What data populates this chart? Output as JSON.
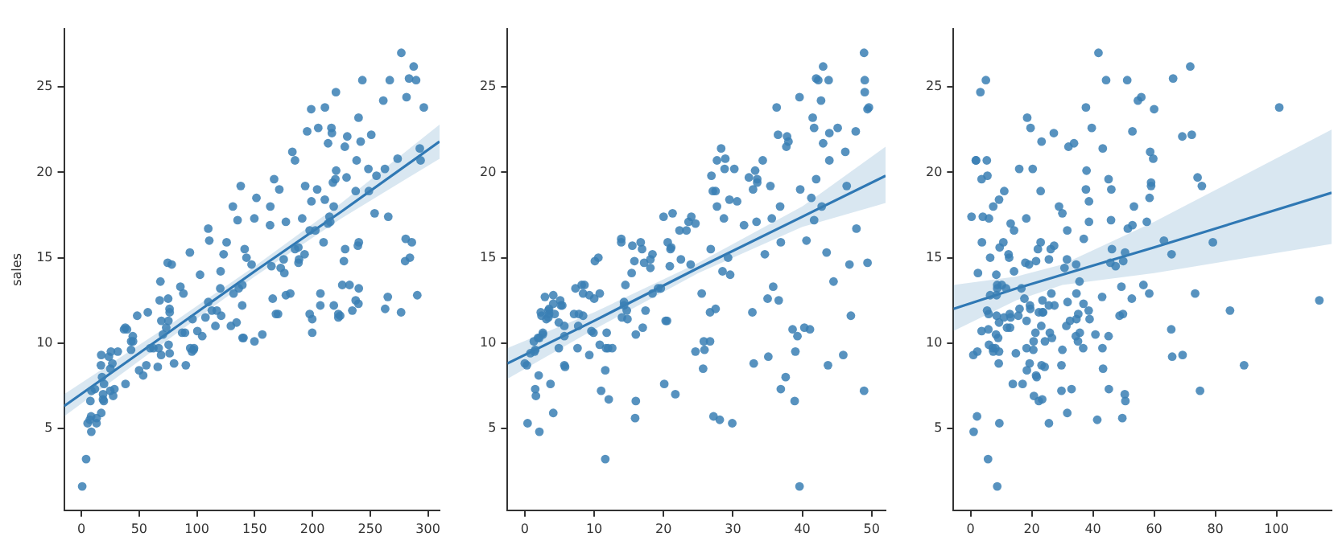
{
  "chart_data": [
    {
      "type": "scatter",
      "ylabel": "sales",
      "xlim": [
        -15,
        310
      ],
      "ylim": [
        0.2,
        28.4
      ],
      "xticks": [
        0,
        50,
        100,
        150,
        200,
        250,
        300
      ],
      "yticks": [
        5,
        10,
        15,
        20,
        25
      ],
      "grid": false,
      "series": [
        {
          "type": "scatter",
          "marker": "circle",
          "color": "#3a7fb4",
          "x": [
            230.1,
            44.5,
            17.2,
            151.5,
            180.8,
            8.7,
            57.5,
            120.2,
            8.6,
            199.8,
            66.1,
            214.7,
            23.8,
            97.5,
            204.1,
            195.4,
            67.8,
            281.4,
            69.2,
            147.3,
            218.4,
            237.4,
            13.2,
            228.3,
            62.3,
            262.9,
            142.9,
            240.1,
            248.8,
            70.6,
            292.9,
            112.9,
            97.2,
            265.6,
            95.7,
            290.7,
            266.9,
            74.7,
            43.1,
            228,
            202.5,
            177,
            293.6,
            206.9,
            25.1,
            175.1,
            89.7,
            239.9,
            227.2,
            66.9,
            199.8,
            100.4,
            216.4,
            182.6,
            262.7,
            198.9,
            7.3,
            136.2,
            210.8,
            210.7,
            53.5,
            261.3,
            239.3,
            102.7,
            131.1,
            69,
            31.5,
            139.3,
            237.4,
            216.8,
            199.1,
            109.8,
            26.8,
            129.4,
            213.4,
            16.9,
            27.5,
            120.5,
            5.4,
            116,
            76.4,
            239.8,
            75.3,
            68.4,
            213.5,
            193.2,
            76.3,
            110.7,
            88.3,
            109.8,
            134.3,
            28.6,
            217.7,
            250.9,
            107.4,
            163.3,
            197.6,
            184.9,
            289.7,
            135.2,
            222.4,
            296.4,
            280.2,
            187.9,
            238.2,
            137.9,
            25,
            90.4,
            13.1,
            255.4,
            225.8,
            241.7,
            175.7,
            209.6,
            78.2,
            75.1,
            139.2,
            76.4,
            125.7,
            19.4,
            141.3,
            18.8,
            224,
            123.1,
            229.5,
            87.2,
            7.8,
            80.2,
            220.3,
            59.6,
            0.7,
            265.2,
            8.4,
            219.8,
            36.9,
            48.3,
            25.6,
            273.7,
            43,
            184.9,
            73.4,
            193.7,
            220.5,
            104.6,
            96.2,
            140.3,
            240.1,
            243.2,
            38,
            44.7,
            280.7,
            121,
            197.6,
            171.3,
            187.8,
            4.1,
            93.9,
            149.8,
            11.7,
            131.7,
            172.5,
            85.7,
            188.4,
            163.5,
            117.2,
            234.5,
            17.9,
            206.8,
            215.4,
            284.3,
            50,
            164.5,
            19.6,
            168.4,
            222.4,
            276.9,
            248.4,
            170.2,
            276.7,
            165.6,
            156.6,
            218.5,
            56.2,
            287.6,
            253.8,
            205,
            139.5,
            191.1,
            286,
            18.7,
            39.5,
            75.5,
            17.2,
            166.8,
            149.7,
            38.2,
            94.2,
            177,
            283.6,
            232.1
          ],
          "values": [
            22.1,
            10.4,
            9.3,
            18.5,
            12.9,
            7.2,
            11.8,
            13.2,
            4.8,
            10.6,
            8.6,
            17.4,
            9.2,
            9.7,
            19,
            22.4,
            12.5,
            24.4,
            11.3,
            14.6,
            18,
            12.5,
            5.6,
            15.5,
            9.7,
            12,
            15,
            15.9,
            18.9,
            10.5,
            21.4,
            11.9,
            9.6,
            17.4,
            9.5,
            12.8,
            25.4,
            14.7,
            10.1,
            21.5,
            16.6,
            17.1,
            20.7,
            12.9,
            8.5,
            14.9,
            10.6,
            23.2,
            14.8,
            9.7,
            11.4,
            10.7,
            22.6,
            21.2,
            20.2,
            23.7,
            5.5,
            13.2,
            23.8,
            18.4,
            8.1,
            24.2,
            15.7,
            14,
            18,
            9.3,
            9.5,
            13.4,
            18.9,
            22.3,
            18.3,
            12.4,
            8.8,
            11,
            17,
            8.7,
            6.9,
            14.2,
            5.3,
            11,
            11.8,
            12.3,
            11.3,
            13.6,
            21.7,
            15.2,
            12,
            16,
            12.9,
            16.7,
            11.2,
            7.3,
            19.4,
            22.2,
            11.5,
            16.9,
            11.7,
            15.5,
            25.4,
            17.2,
            11.7,
            23.8,
            14.8,
            14.7,
            20.7,
            19.2,
            7.2,
            8.7,
            5.3,
            19.8,
            13.4,
            21.8,
            14.1,
            15.9,
            14.6,
            12.6,
            12.2,
            9.4,
            15.9,
            6.6,
            15.5,
            7,
            11.6,
            15.2,
            19.7,
            10.6,
            6.6,
            8.8,
            24.7,
            9.7,
            1.6,
            12.7,
            5.7,
            19.6,
            10.8,
            11.6,
            9.5,
            20.8,
            9.6,
            20.7,
            10.9,
            19.2,
            20.1,
            10.4,
            11.4,
            10.3,
            13.2,
            25.4,
            10.9,
            10.1,
            16.1,
            11.6,
            16.6,
            19,
            15.6,
            3.2,
            15.3,
            10.1,
            7.3,
            12.9,
            14.4,
            13.3,
            14.9,
            18,
            11.9,
            11.9,
            8,
            12.2,
            17.1,
            15,
            8.4,
            14.5,
            7.6,
            11.7,
            11.5,
            27,
            20.2,
            11.7,
            11.8,
            12.6,
            10.5,
            12.2,
            8.7,
            26.2,
            17.6,
            22.6,
            10.3,
            17.3,
            15.9,
            6.7,
            10.8,
            9.9,
            5.9,
            19.6,
            17.3,
            7.6,
            9.7,
            12.8,
            25.5,
            13.4
          ]
        },
        {
          "type": "line",
          "color": "#2f78b4",
          "x": [
            -15,
            75,
            150,
            225,
            310
          ],
          "values": [
            6.3,
            10.6,
            14.2,
            17.7,
            21.8
          ],
          "lower": [
            5.7,
            10.2,
            13.9,
            17.3,
            20.8
          ],
          "upper": [
            7,
            11,
            14.5,
            18.2,
            22.8
          ]
        }
      ]
    },
    {
      "type": "scatter",
      "xlim": [
        -2.5,
        52
      ],
      "ylim": [
        0.2,
        28.4
      ],
      "xticks": [
        0,
        10,
        20,
        30,
        40,
        50
      ],
      "yticks": [
        5,
        10,
        15,
        20,
        25
      ],
      "grid": false,
      "series": [
        {
          "type": "scatter",
          "marker": "circle",
          "color": "#3a7fb4",
          "x": [
            37.8,
            39.3,
            45.9,
            41.3,
            10.8,
            48.9,
            32.8,
            19.6,
            2.1,
            2.6,
            5.8,
            24,
            35.1,
            7.6,
            32.9,
            47.7,
            36.6,
            39.6,
            20.5,
            23.9,
            27.7,
            5.1,
            15.9,
            16.9,
            12.6,
            3.5,
            29.3,
            16.7,
            27.1,
            16,
            28.3,
            17.4,
            1.5,
            20,
            1.4,
            4.1,
            43.8,
            49.4,
            26.7,
            37.7,
            22.3,
            33.4,
            27.7,
            8.4,
            25.7,
            22.5,
            9.9,
            41.5,
            15.8,
            11.7,
            3.1,
            9.6,
            41.7,
            46.2,
            28.8,
            49.4,
            28.1,
            19.2,
            49.6,
            29.5,
            2,
            42.7,
            15.5,
            29.6,
            42.8,
            9.3,
            24.6,
            14.5,
            27.5,
            43.9,
            30.6,
            14.3,
            33,
            5.7,
            24.6,
            43.7,
            1.6,
            28.5,
            29.9,
            7.7,
            26.7,
            4.1,
            20.3,
            44.5,
            43,
            18.4,
            27.5,
            40.6,
            25.5,
            47.8,
            4.9,
            1.5,
            33.5,
            36.5,
            14,
            31.6,
            3.5,
            21,
            42.3,
            41.7,
            4.3,
            36.3,
            10.1,
            17.2,
            34.3,
            46.4,
            11,
            0.3,
            0.4,
            26.9,
            8.2,
            38,
            15.4,
            20.6,
            46.8,
            35,
            14.3,
            0.8,
            36.9,
            16,
            26.8,
            21.7,
            2.4,
            34.6,
            32.3,
            11.8,
            38.9,
            0,
            49,
            12,
            39.6,
            2.9,
            27.2,
            33.5,
            38.6,
            47,
            39,
            28.9,
            25.9,
            43.9,
            17,
            35.4,
            33.2,
            5.7,
            14.8,
            1.9,
            7.3,
            49,
            40.3,
            25.8,
            13.9,
            8.4,
            23.3,
            39.7,
            21.1,
            11.6,
            43.5,
            1.3,
            36.9,
            18.4,
            18.1,
            35.8,
            18.1,
            36.8,
            14.7,
            3.4,
            37.6,
            5.2,
            23.6,
            10.6,
            11.6,
            20.9,
            20.1,
            7.1,
            3.4,
            48.9,
            30.2,
            7.8,
            2.3,
            10,
            2.6,
            5.4,
            5.7,
            43,
            21.3,
            45.1,
            2.1,
            28.7,
            13.9,
            12.1,
            41.1,
            10.8,
            4.1,
            42,
            35.6,
            3.7,
            4.9,
            9.3,
            42,
            8.6
          ],
          "values": [
            22.1,
            10.4,
            9.3,
            18.5,
            12.9,
            7.2,
            11.8,
            13.2,
            4.8,
            10.6,
            8.6,
            17.4,
            9.2,
            9.7,
            19,
            22.4,
            12.5,
            24.4,
            11.3,
            14.6,
            18,
            12.5,
            5.6,
            15.5,
            9.7,
            12,
            15,
            15.9,
            18.9,
            10.5,
            21.4,
            11.9,
            9.6,
            17.4,
            9.5,
            12.8,
            25.4,
            14.7,
            10.1,
            21.5,
            16.6,
            17.1,
            20.7,
            12.9,
            8.5,
            14.9,
            10.6,
            23.2,
            14.8,
            9.7,
            11.4,
            10.7,
            22.6,
            21.2,
            20.2,
            23.7,
            5.5,
            13.2,
            23.8,
            18.4,
            8.1,
            24.2,
            15.7,
            14,
            18,
            9.3,
            9.5,
            13.4,
            18.9,
            22.3,
            18.3,
            12.4,
            8.8,
            11,
            17,
            8.7,
            6.9,
            14.2,
            5.3,
            11,
            11.8,
            12.3,
            11.3,
            13.6,
            21.7,
            15.2,
            12,
            16,
            12.9,
            16.7,
            11.2,
            7.3,
            19.4,
            22.2,
            11.5,
            16.9,
            11.7,
            15.5,
            25.4,
            17.2,
            11.7,
            23.8,
            14.8,
            14.7,
            20.7,
            19.2,
            7.2,
            8.7,
            5.3,
            19.8,
            13.4,
            21.8,
            14.1,
            15.9,
            14.6,
            12.6,
            12.2,
            9.4,
            15.9,
            6.6,
            15.5,
            7,
            11.6,
            15.2,
            19.7,
            10.6,
            6.6,
            8.8,
            24.7,
            9.7,
            1.6,
            12.7,
            5.7,
            19.6,
            10.8,
            11.6,
            9.5,
            20.8,
            9.6,
            20.7,
            10.9,
            19.2,
            20.1,
            10.4,
            11.4,
            10.3,
            13.2,
            25.4,
            10.9,
            10.1,
            16.1,
            11.6,
            16.6,
            19,
            15.6,
            3.2,
            15.3,
            10.1,
            7.3,
            12.9,
            14.4,
            13.3,
            14.9,
            18,
            11.9,
            11.9,
            8,
            12.2,
            17.1,
            15,
            8.4,
            14.5,
            7.6,
            11.7,
            11.5,
            27,
            20.2,
            11.7,
            11.8,
            12.6,
            10.5,
            12.2,
            8.7,
            26.2,
            17.6,
            22.6,
            10.3,
            17.3,
            15.9,
            6.7,
            10.8,
            9.9,
            5.9,
            19.6,
            17.3,
            7.6,
            9.7,
            12.8,
            25.5,
            13.4
          ]
        },
        {
          "type": "line",
          "color": "#2f78b4",
          "x": [
            -2.5,
            10,
            25,
            40,
            52
          ],
          "values": [
            8.8,
            11.3,
            14.4,
            17.4,
            19.8
          ],
          "lower": [
            7.9,
            10.8,
            14.1,
            16.8,
            18.2
          ],
          "upper": [
            9.7,
            11.8,
            14.7,
            18,
            21.5
          ]
        }
      ]
    },
    {
      "type": "scatter",
      "xlim": [
        -5.6,
        118
      ],
      "ylim": [
        0.2,
        28.4
      ],
      "xticks": [
        0,
        20,
        40,
        60,
        80,
        100
      ],
      "yticks": [
        5,
        10,
        15,
        20,
        25
      ],
      "grid": false,
      "series": [
        {
          "type": "scatter",
          "marker": "circle",
          "color": "#3a7fb4",
          "x": [
            69.2,
            45.1,
            69.3,
            58.5,
            58.4,
            75,
            23.5,
            11.6,
            1,
            21.2,
            24.2,
            4,
            65.9,
            7.2,
            46,
            52.9,
            114,
            55.8,
            18.3,
            19.1,
            53.4,
            23.5,
            49.6,
            26.2,
            18.3,
            19.5,
            12.6,
            22.9,
            22.9,
            40.8,
            43.2,
            38.6,
            30,
            0.3,
            7.4,
            8.5,
            5,
            45.7,
            35.1,
            32,
            31.6,
            38.7,
            1.8,
            26.4,
            43.3,
            31.5,
            35.7,
            18.5,
            49.9,
            36.8,
            34.6,
            3.6,
            39.6,
            58.7,
            15.9,
            60,
            41.4,
            16.6,
            37.7,
            9.3,
            21.4,
            54.7,
            27.3,
            8.4,
            28.9,
            0.9,
            2.2,
            10.2,
            11,
            27.2,
            38.7,
            31.7,
            19.3,
            31.3,
            13.1,
            89.4,
            20.7,
            14.2,
            9.4,
            23.1,
            22.3,
            36.9,
            32.5,
            35.6,
            33.8,
            65.7,
            16,
            63.2,
            73.4,
            51.4,
            9.3,
            33,
            59,
            72.3,
            10.9,
            52.9,
            5.9,
            22,
            51.2,
            45.9,
            49.8,
            100.9,
            21.4,
            17.9,
            5.3,
            59,
            29.7,
            23.2,
            25.6,
            5.5,
            56.5,
            23.2,
            2.4,
            10.7,
            34.5,
            52.7,
            25.6,
            14.8,
            79.2,
            22.3,
            46.2,
            50.4,
            15.6,
            12.4,
            74.2,
            25.9,
            50.6,
            9.2,
            3.2,
            43.1,
            8.7,
            43,
            2.1,
            45.1,
            65.6,
            8.5,
            9.3,
            59.7,
            20.5,
            1.7,
            12.9,
            75.6,
            37.9,
            34.4,
            38.9,
            9,
            8.7,
            44.3,
            11.9,
            20.6,
            37,
            48.7,
            14.2,
            37.7,
            9.5,
            5.7,
            50.5,
            24.3,
            45.2,
            34.6,
            30.7,
            49.3,
            25.6,
            7.4,
            5.4,
            84.8,
            21.6,
            19.4,
            57.6,
            6.4,
            18.4,
            47.4,
            17,
            12.8,
            13.1,
            41.8,
            20.3,
            35.2,
            23.7,
            17.6,
            8.3,
            27.4,
            29.7,
            71.8,
            30,
            19.6,
            26.6,
            18.2,
            3.7,
            23.4,
            5.8,
            6,
            31.6,
            3.6,
            6,
            13.8,
            8.1,
            6.4,
            66.2,
            8.7
          ],
          "values": [
            22.1,
            10.4,
            9.3,
            18.5,
            12.9,
            7.2,
            11.8,
            13.2,
            4.8,
            10.6,
            8.6,
            17.4,
            9.2,
            9.7,
            19,
            22.4,
            12.5,
            24.4,
            11.3,
            14.6,
            18,
            12.5,
            5.6,
            15.5,
            9.7,
            12,
            15,
            15.9,
            18.9,
            10.5,
            21.4,
            11.9,
            9.6,
            17.4,
            9.5,
            12.8,
            25.4,
            14.7,
            10.1,
            21.5,
            16.6,
            17.1,
            20.7,
            12.9,
            8.5,
            14.9,
            10.6,
            23.2,
            14.8,
            9.7,
            11.4,
            10.7,
            22.6,
            21.2,
            20.2,
            23.7,
            5.5,
            13.2,
            23.8,
            18.4,
            8.1,
            24.2,
            15.7,
            14,
            18,
            9.3,
            9.5,
            13.4,
            18.9,
            22.3,
            18.3,
            12.4,
            8.8,
            11,
            17,
            8.7,
            6.9,
            14.2,
            5.3,
            11,
            11.8,
            12.3,
            11.3,
            13.6,
            21.7,
            15.2,
            12,
            16,
            12.9,
            16.7,
            11.2,
            7.3,
            19.4,
            22.2,
            11.5,
            16.9,
            11.7,
            15.5,
            25.4,
            17.2,
            11.7,
            23.8,
            14.8,
            14.7,
            20.7,
            19.2,
            7.2,
            8.7,
            5.3,
            19.8,
            13.4,
            21.8,
            14.1,
            15.9,
            14.6,
            12.6,
            12.2,
            9.4,
            15.9,
            6.6,
            15.5,
            7,
            11.6,
            15.2,
            19.7,
            10.6,
            6.6,
            8.8,
            24.7,
            9.7,
            1.6,
            12.7,
            5.7,
            19.6,
            10.8,
            11.6,
            9.5,
            20.8,
            9.6,
            20.7,
            10.9,
            19.2,
            20.1,
            10.4,
            11.4,
            10.3,
            13.2,
            25.4,
            10.9,
            10.1,
            16.1,
            11.6,
            16.6,
            19,
            15.6,
            3.2,
            15.3,
            10.1,
            7.3,
            12.9,
            14.4,
            13.3,
            14.9,
            18,
            11.9,
            11.9,
            8,
            12.2,
            17.1,
            15,
            8.4,
            14.5,
            7.6,
            11.7,
            11.5,
            27,
            20.2,
            11.7,
            11.8,
            12.6,
            10.5,
            12.2,
            8.7,
            26.2,
            17.6,
            22.6,
            10.3,
            17.3,
            15.9,
            6.7,
            10.8,
            9.9,
            5.9,
            19.6,
            17.3,
            7.6,
            9.7,
            12.8,
            25.5,
            13.4
          ]
        },
        {
          "type": "line",
          "color": "#2f78b4",
          "x": [
            -5.6,
            15,
            30,
            60,
            118
          ],
          "values": [
            12,
            13.2,
            14,
            15.6,
            18.8
          ],
          "lower": [
            10.7,
            12.5,
            13.4,
            14.1,
            15.8
          ],
          "upper": [
            13.4,
            13.9,
            14.6,
            17.1,
            22.5
          ]
        }
      ]
    }
  ]
}
